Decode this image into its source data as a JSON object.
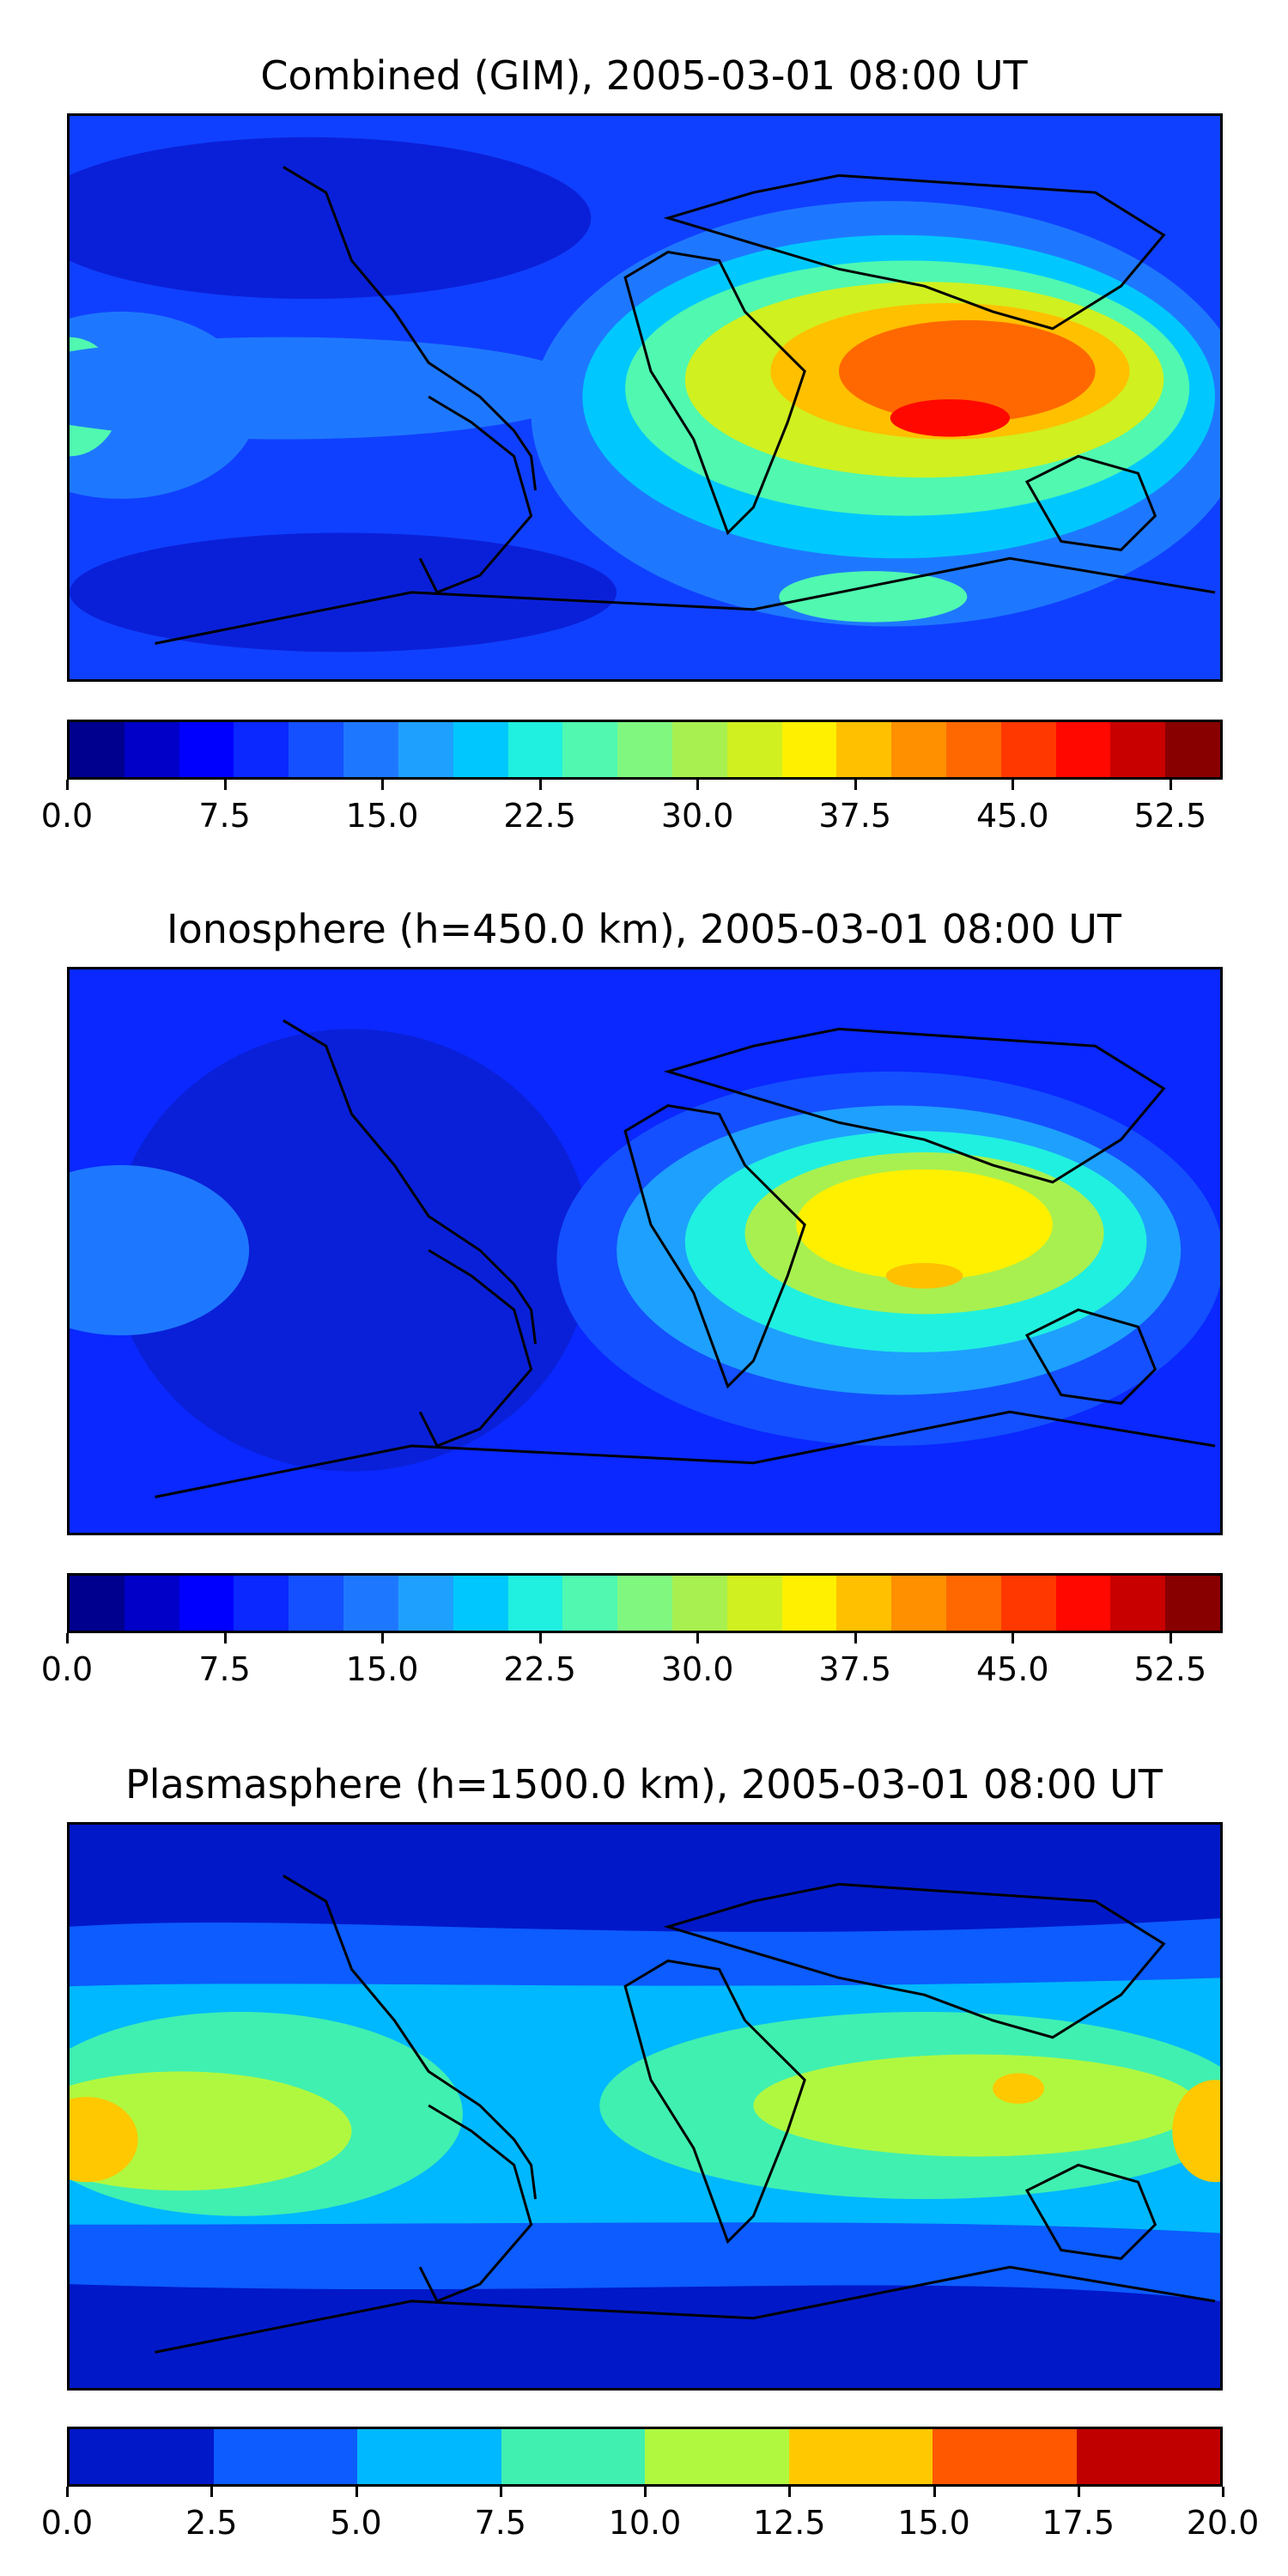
{
  "panels": [
    {
      "title": "Combined (GIM), 2005-03-01 08:00 UT",
      "colorbar": {
        "colors": [
          "#00008f",
          "#0000c8",
          "#0000ff",
          "#0a28ff",
          "#1450ff",
          "#1e78ff",
          "#1ea0ff",
          "#00c8ff",
          "#20f0e0",
          "#50f8b0",
          "#80f880",
          "#a8f050",
          "#d0f020",
          "#fff000",
          "#ffc000",
          "#ff9000",
          "#ff6800",
          "#ff3800",
          "#ff0800",
          "#c80000",
          "#880000"
        ],
        "ticks": [
          "0.0",
          "7.5",
          "15.0",
          "22.5",
          "30.0",
          "37.5",
          "45.0",
          "52.5"
        ],
        "min": 0,
        "max": 55,
        "tick_values": [
          0,
          7.5,
          15,
          22.5,
          30,
          37.5,
          45,
          52.5
        ]
      }
    },
    {
      "title": "Ionosphere  (h=450.0 km), 2005-03-01 08:00 UT",
      "colorbar": {
        "colors": [
          "#00008f",
          "#0000c8",
          "#0000ff",
          "#0a28ff",
          "#1450ff",
          "#1e78ff",
          "#1ea0ff",
          "#00c8ff",
          "#20f0e0",
          "#50f8b0",
          "#80f880",
          "#a8f050",
          "#d0f020",
          "#fff000",
          "#ffc000",
          "#ff9000",
          "#ff6800",
          "#ff3800",
          "#ff0800",
          "#c80000",
          "#880000"
        ],
        "ticks": [
          "0.0",
          "7.5",
          "15.0",
          "22.5",
          "30.0",
          "37.5",
          "45.0",
          "52.5"
        ],
        "min": 0,
        "max": 55,
        "tick_values": [
          0,
          7.5,
          15,
          22.5,
          30,
          37.5,
          45,
          52.5
        ]
      }
    },
    {
      "title": "Plasmasphere (h=1500.0 km), 2005-03-01 08:00 UT",
      "colorbar": {
        "colors": [
          "#0018c8",
          "#0c5cff",
          "#00b8ff",
          "#40f0b0",
          "#b0f840",
          "#ffc800",
          "#ff5800",
          "#c00000"
        ],
        "ticks": [
          "0.0",
          "2.5",
          "5.0",
          "7.5",
          "10.0",
          "12.5",
          "15.0",
          "17.5",
          "20.0"
        ],
        "min": 0,
        "max": 20,
        "tick_values": [
          0,
          2.5,
          5,
          7.5,
          10,
          12.5,
          15,
          17.5,
          20
        ]
      }
    }
  ]
}
